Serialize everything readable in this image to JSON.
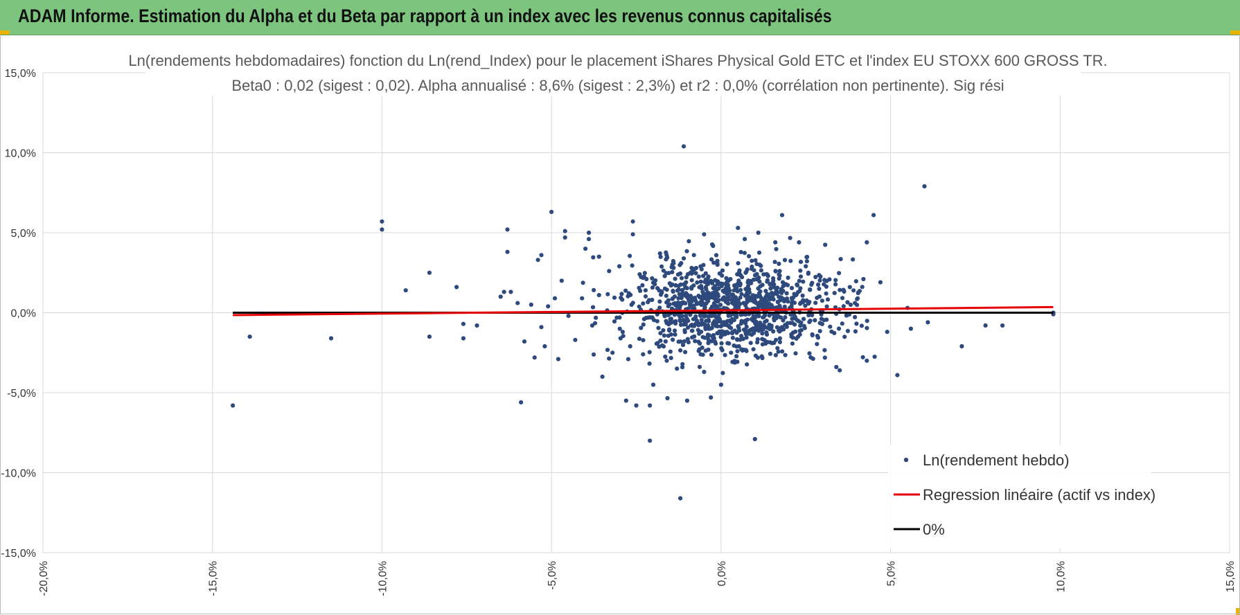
{
  "header": {
    "title": "ADAM Informe. Estimation du Alpha et du Beta par rapport à un index avec les revenus connus capitalisés"
  },
  "colors": {
    "banner": "#7dc57f",
    "points": "#2e4a7d",
    "regression": "#e60000",
    "zero": "#000000",
    "grid": "#d9d9d9"
  },
  "chart_data": {
    "type": "scatter",
    "title_line1": "Ln(rendements hebdomadaires) fonction du Ln(rend_Index) pour le placement iShares Physical Gold ETC et l'index EU STOXX 600 GROSS TR.",
    "title_line2": "Beta0 : 0,02 (sigest : 0,02).  Alpha annualisé : 8,6% (sigest : 2,3%) et r2 : 0,0% (corrélation non pertinente). Sig rési",
    "xlim": [
      -20,
      15
    ],
    "ylim": [
      -15,
      15
    ],
    "x_ticks": [
      -20,
      -15,
      -10,
      -5,
      0,
      5,
      10,
      15
    ],
    "x_tick_labels": [
      "-20,0%",
      "-15,0%",
      "-10,0%",
      "-5,0%",
      "0,0%",
      "5,0%",
      "10,0%",
      "15,0%"
    ],
    "y_ticks": [
      15,
      10,
      5,
      0,
      -5,
      -10,
      -15
    ],
    "y_tick_labels": [
      "15,0%",
      "10,0%",
      "5,0%",
      "0,0%",
      "-5,0%",
      "-10,0%",
      "-15,0%"
    ],
    "legend": [
      {
        "label": "Ln(rendement hebdo)",
        "kind": "marker"
      },
      {
        "label": "Regression linéaire (actif vs index)",
        "kind": "line-red"
      },
      {
        "label": "0%",
        "kind": "line-black"
      }
    ],
    "regression": {
      "x": [
        -14.4,
        9.8
      ],
      "y": [
        -0.15,
        0.35
      ]
    },
    "zero_line": {
      "x": [
        -14.4,
        9.8
      ],
      "y": [
        0,
        0
      ]
    },
    "cluster": {
      "n": 1100,
      "seed": 7,
      "center_x": 0.4,
      "center_y": 0.3,
      "sd_x": 1.6,
      "sd_y": 1.5
    },
    "series": [
      {
        "name": "Ln(rendement hebdo)",
        "points": [
          [
            -14.4,
            -5.8
          ],
          [
            -13.9,
            -1.5
          ],
          [
            -11.5,
            -1.6
          ],
          [
            -10.0,
            5.7
          ],
          [
            -10.0,
            5.2
          ],
          [
            -9.3,
            1.4
          ],
          [
            -8.6,
            2.5
          ],
          [
            -8.6,
            -1.5
          ],
          [
            -7.8,
            1.6
          ],
          [
            -7.6,
            -0.7
          ],
          [
            -7.6,
            -1.6
          ],
          [
            -7.2,
            -0.8
          ],
          [
            -6.5,
            1.0
          ],
          [
            -6.4,
            1.3
          ],
          [
            -6.3,
            5.2
          ],
          [
            -6.3,
            3.8
          ],
          [
            -6.2,
            1.3
          ],
          [
            -6.0,
            0.6
          ],
          [
            -5.9,
            -5.6
          ],
          [
            -5.8,
            -1.8
          ],
          [
            -5.6,
            0.5
          ],
          [
            -5.5,
            -2.8
          ],
          [
            -5.4,
            3.3
          ],
          [
            -5.3,
            3.6
          ],
          [
            -5.3,
            -0.9
          ],
          [
            -5.2,
            -2.1
          ],
          [
            -5.1,
            0.4
          ],
          [
            -5.0,
            6.3
          ],
          [
            -4.9,
            0.9
          ],
          [
            -4.8,
            -2.9
          ],
          [
            -4.7,
            2.0
          ],
          [
            -4.6,
            4.7
          ],
          [
            -4.6,
            5.1
          ],
          [
            -4.5,
            -0.2
          ],
          [
            -4.3,
            -1.7
          ],
          [
            -4.1,
            0.9
          ],
          [
            -4.0,
            4.0
          ],
          [
            -3.9,
            5.0
          ],
          [
            -3.9,
            4.6
          ],
          [
            -3.8,
            -0.8
          ],
          [
            -3.6,
            3.5
          ],
          [
            -3.6,
            1.1
          ],
          [
            -3.5,
            -4.0
          ],
          [
            -3.3,
            2.6
          ],
          [
            -3.2,
            -2.5
          ],
          [
            -3.0,
            2.9
          ],
          [
            -2.9,
            -1.2
          ],
          [
            -2.8,
            -5.5
          ],
          [
            -2.6,
            5.7
          ],
          [
            -2.6,
            4.9
          ],
          [
            -2.5,
            -5.8
          ],
          [
            -2.4,
            2.4
          ],
          [
            -2.3,
            -2.6
          ],
          [
            -2.2,
            2.1
          ],
          [
            -2.1,
            -5.8
          ],
          [
            -2.1,
            -8.0
          ],
          [
            -2.0,
            -4.5
          ],
          [
            -1.8,
            3.7
          ],
          [
            -1.6,
            -3.0
          ],
          [
            -1.4,
            2.8
          ],
          [
            -1.3,
            -3.5
          ],
          [
            -1.2,
            -11.6
          ],
          [
            -1.1,
            10.4
          ],
          [
            -1.0,
            -5.5
          ],
          [
            -0.8,
            3.6
          ],
          [
            -0.6,
            -2.6
          ],
          [
            -0.5,
            4.9
          ],
          [
            -0.5,
            -3.7
          ],
          [
            -0.3,
            -5.3
          ],
          [
            0.0,
            -4.5
          ],
          [
            0.5,
            5.3
          ],
          [
            0.7,
            4.6
          ],
          [
            1.0,
            -7.9
          ],
          [
            1.1,
            5.0
          ],
          [
            1.6,
            4.4
          ],
          [
            1.8,
            6.1
          ],
          [
            2.3,
            4.4
          ],
          [
            2.5,
            2.9
          ],
          [
            3.1,
            1.2
          ],
          [
            3.4,
            -3.4
          ],
          [
            3.5,
            -3.6
          ],
          [
            3.8,
            1.6
          ],
          [
            4.2,
            2.1
          ],
          [
            4.3,
            4.4
          ],
          [
            4.3,
            -3.0
          ],
          [
            4.5,
            6.1
          ],
          [
            4.7,
            1.9
          ],
          [
            4.9,
            -1.2
          ],
          [
            5.2,
            -3.9
          ],
          [
            5.5,
            0.3
          ],
          [
            5.6,
            -1.0
          ],
          [
            6.0,
            7.9
          ],
          [
            6.1,
            -0.6
          ],
          [
            7.1,
            -2.1
          ],
          [
            7.8,
            -0.8
          ],
          [
            8.3,
            -0.8
          ],
          [
            9.8,
            -0.1
          ],
          [
            9.8,
            0.0
          ]
        ]
      }
    ]
  }
}
